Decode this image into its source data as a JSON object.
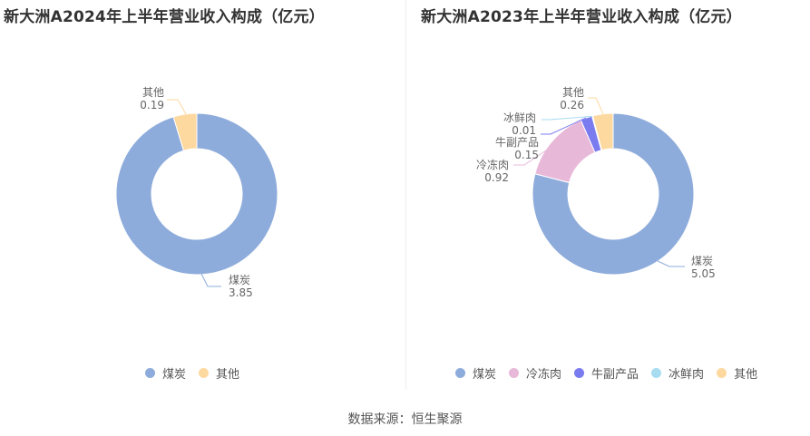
{
  "source": "数据来源：恒生聚源",
  "chart_data": [
    {
      "type": "pie",
      "title": "新大洲A2024年上半年营业收入构成（亿元）",
      "slices": [
        {
          "name": "煤炭",
          "value": 3.85,
          "label": "3.85",
          "color": "#8eacdb"
        },
        {
          "name": "其他",
          "value": 0.19,
          "label": "0.19",
          "color": "#fdd9a0"
        }
      ],
      "legend": {
        "placement": "bottom"
      }
    },
    {
      "type": "pie",
      "title": "新大洲A2023年上半年营业收入构成（亿元）",
      "slices": [
        {
          "name": "煤炭",
          "value": 5.05,
          "label": "5.05",
          "color": "#8eacdb"
        },
        {
          "name": "冷冻肉",
          "value": 0.92,
          "label": "0.92",
          "color": "#e8b8d8"
        },
        {
          "name": "牛副产品",
          "value": 0.15,
          "label": "0.15",
          "color": "#7b7bf0"
        },
        {
          "name": "冰鲜肉",
          "value": 0.01,
          "label": "0.01",
          "color": "#a8dcf0"
        },
        {
          "name": "其他",
          "value": 0.26,
          "label": "0.26",
          "color": "#fdd9a0"
        }
      ],
      "legend": {
        "placement": "bottom"
      }
    }
  ]
}
